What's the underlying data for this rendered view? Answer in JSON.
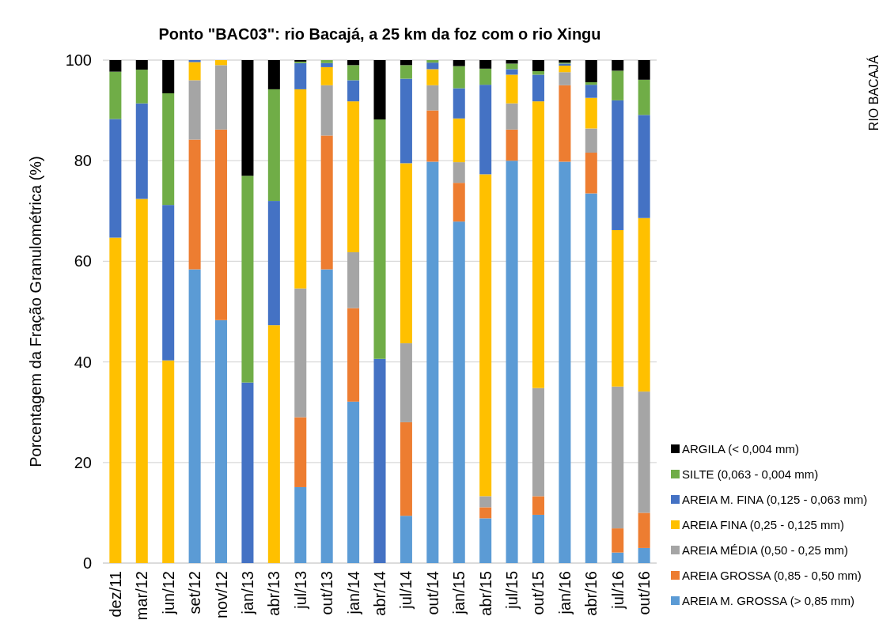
{
  "chart_data": {
    "type": "bar",
    "stacked": true,
    "title": "Ponto  \"BAC03\": rio Bacajá, a 25 km da foz com o rio Xingu",
    "ylabel": "Porcentagem da Fração Granulométrica (%)",
    "annotations": [
      "RIO BACAJÁ"
    ],
    "categories": [
      "dez/11",
      "mar/12",
      "jun/12",
      "set/12",
      "nov/12",
      "jan/13",
      "abr/13",
      "jul/13",
      "out/13",
      "jan/14",
      "abr/14",
      "jul/14",
      "out/14",
      "jan/15",
      "abr/15",
      "jul/15",
      "out/15",
      "jan/16",
      "abr/16",
      "jul/16",
      "out/16"
    ],
    "ylim": [
      0,
      100
    ],
    "yticks": [
      0,
      20,
      40,
      60,
      80,
      100
    ],
    "grid": "y",
    "legend": "bottom right",
    "series": [
      {
        "name": "AREIA M. GROSSA (> 0,85 mm)",
        "color": "#5b9bd5",
        "values": [
          0,
          0,
          0,
          58.4,
          48.3,
          0,
          0,
          15.1,
          58.4,
          32.1,
          0,
          9.4,
          79.8,
          67.9,
          8.9,
          80,
          9.6,
          79.8,
          73.5,
          2.1,
          3
        ]
      },
      {
        "name": "AREIA GROSSA (0,85 - 0,50 mm)",
        "color": "#ed7d31",
        "values": [
          0,
          0,
          0,
          25.8,
          37.9,
          0,
          0,
          13.9,
          26.6,
          18.6,
          0,
          18.6,
          10.2,
          7.7,
          2.2,
          6.2,
          3.7,
          15.2,
          8.1,
          4.8,
          7
        ]
      },
      {
        "name": "AREIA MÉDIA (0,50 - 0,25 mm)",
        "color": "#a5a5a5",
        "values": [
          0,
          0,
          0,
          11.8,
          12.8,
          0,
          0,
          25.6,
          10,
          11.1,
          0,
          15.7,
          5,
          4.1,
          2.2,
          5.2,
          21.5,
          2.6,
          4.8,
          28.2,
          24.1
        ]
      },
      {
        "name": "AREIA FINA (0,25 - 0,125 mm)",
        "color": "#ffc000",
        "values": [
          64.7,
          72.4,
          40.3,
          3.6,
          1,
          0,
          47.3,
          39.6,
          3.6,
          30,
          0,
          35.8,
          3.2,
          8.7,
          64,
          5.7,
          57,
          1.3,
          6.1,
          31.1,
          34.5
        ]
      },
      {
        "name": "AREIA M. FINA (0,125 - 0,063 mm)",
        "color": "#4472c4",
        "values": [
          23.6,
          19,
          30.9,
          0.4,
          0,
          35.9,
          24.7,
          5.2,
          0.8,
          4.2,
          40.6,
          16.8,
          1.3,
          6,
          17.8,
          1.1,
          5.3,
          0.4,
          2.6,
          25.8,
          20.5
        ]
      },
      {
        "name": "SILTE (0,063 -  0,004 mm)",
        "color": "#70ad47",
        "values": [
          9.4,
          6.7,
          22.2,
          0,
          0,
          41.1,
          22.2,
          0.3,
          0.6,
          3,
          47.6,
          2.7,
          0.5,
          4.4,
          3.2,
          1.1,
          0.7,
          0.2,
          0.5,
          5.9,
          7
        ]
      },
      {
        "name": "ARGILA (< 0,004 mm)",
        "color": "#000000",
        "values": [
          2.3,
          1.9,
          6.6,
          0,
          0,
          23,
          5.8,
          0.3,
          0,
          1,
          11.8,
          1,
          0,
          1.2,
          1.7,
          0.7,
          2.2,
          0.5,
          4.4,
          2.1,
          3.9
        ]
      }
    ]
  }
}
